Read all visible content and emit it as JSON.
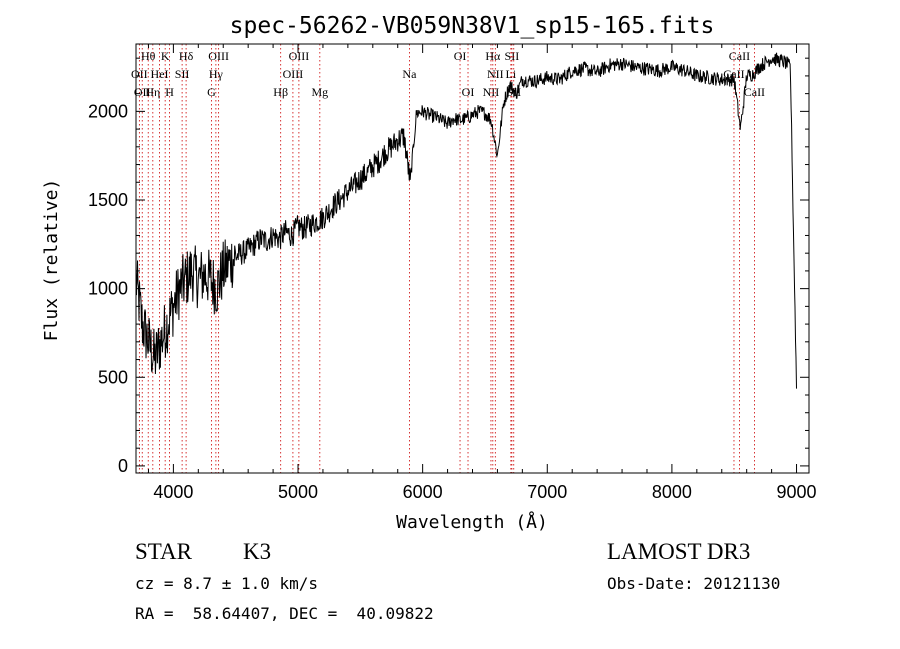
{
  "chart_data": {
    "type": "line",
    "title": "spec-56262-VB059N38V1_sp15-165.fits",
    "xlabel": "Wavelength (Å)",
    "ylabel": "Flux (relative)",
    "xlim": [
      3700,
      9100
    ],
    "ylim": [
      -40,
      2380
    ],
    "xticks": [
      "4000",
      "5000",
      "6000",
      "7000",
      "8000",
      "9000"
    ],
    "yticks": [
      "0",
      "500",
      "1000",
      "1500",
      "2000"
    ],
    "grid": false,
    "series": [
      {
        "name": "flux",
        "x": [
          3700,
          3750,
          3800,
          3850,
          3900,
          3950,
          4000,
          4050,
          4100,
          4150,
          4200,
          4250,
          4300,
          4350,
          4400,
          4450,
          4500,
          4550,
          4600,
          4650,
          4700,
          4750,
          4800,
          4850,
          4900,
          4950,
          5000,
          5050,
          5100,
          5150,
          5200,
          5250,
          5300,
          5350,
          5400,
          5450,
          5500,
          5550,
          5600,
          5650,
          5700,
          5750,
          5800,
          5850,
          5900,
          5950,
          6000,
          6050,
          6100,
          6150,
          6200,
          6250,
          6300,
          6350,
          6400,
          6450,
          6500,
          6550,
          6600,
          6650,
          6700,
          6750,
          6800,
          6900,
          7000,
          7100,
          7200,
          7300,
          7400,
          7500,
          7600,
          7700,
          7800,
          7900,
          8000,
          8100,
          8200,
          8300,
          8400,
          8500,
          8550,
          8600,
          8650,
          8700,
          8800,
          8900,
          8950,
          9000
        ],
        "y": [
          1050,
          800,
          700,
          600,
          700,
          800,
          900,
          1000,
          1050,
          1100,
          1050,
          1080,
          1050,
          1000,
          1100,
          1150,
          1180,
          1200,
          1220,
          1250,
          1280,
          1270,
          1300,
          1280,
          1320,
          1300,
          1350,
          1340,
          1360,
          1380,
          1400,
          1440,
          1480,
          1510,
          1550,
          1580,
          1620,
          1650,
          1690,
          1720,
          1770,
          1800,
          1840,
          1860,
          1600,
          1990,
          2000,
          1980,
          1970,
          1950,
          1930,
          1960,
          1950,
          1960,
          1980,
          2000,
          1990,
          1950,
          1750,
          2050,
          2150,
          2100,
          2180,
          2170,
          2190,
          2180,
          2230,
          2240,
          2220,
          2260,
          2270,
          2250,
          2240,
          2230,
          2250,
          2230,
          2200,
          2190,
          2180,
          2180,
          1900,
          2200,
          2210,
          2250,
          2300,
          2280,
          2250,
          450
        ]
      }
    ],
    "lines": [
      {
        "wavelength": 3727,
        "labels": [
          "OII"
        ],
        "row": 1
      },
      {
        "wavelength": 3750,
        "labels": [
          "OII"
        ],
        "row": 2
      },
      {
        "wavelength": 3798,
        "labels": [
          "Hθ"
        ],
        "row": 0
      },
      {
        "wavelength": 3835,
        "labels": [
          "Hη"
        ],
        "row": 2
      },
      {
        "wavelength": 3889,
        "labels": [
          "HeI"
        ],
        "row": 1
      },
      {
        "wavelength": 3934,
        "labels": [
          "K"
        ],
        "row": 0
      },
      {
        "wavelength": 3969,
        "labels": [
          "H"
        ],
        "row": 2
      },
      {
        "wavelength": 4070,
        "labels": [
          "SII"
        ],
        "row": 1
      },
      {
        "wavelength": 4102,
        "labels": [
          "Hδ"
        ],
        "row": 0
      },
      {
        "wavelength": 4305,
        "labels": [
          "G"
        ],
        "row": 2
      },
      {
        "wavelength": 4341,
        "labels": [
          "Hγ"
        ],
        "row": 1
      },
      {
        "wavelength": 4363,
        "labels": [
          "OIII"
        ],
        "row": 0
      },
      {
        "wavelength": 4861,
        "labels": [
          "Hβ"
        ],
        "row": 2
      },
      {
        "wavelength": 4959,
        "labels": [
          "OIII"
        ],
        "row": 1
      },
      {
        "wavelength": 5007,
        "labels": [
          "OIII"
        ],
        "row": 0
      },
      {
        "wavelength": 5175,
        "labels": [
          "Mg"
        ],
        "row": 2
      },
      {
        "wavelength": 5894,
        "labels": [
          "Na"
        ],
        "row": 1
      },
      {
        "wavelength": 6300,
        "labels": [
          "OI"
        ],
        "row": 0
      },
      {
        "wavelength": 6364,
        "labels": [
          "OI"
        ],
        "row": 2
      },
      {
        "wavelength": 6548,
        "labels": [
          "NII"
        ],
        "row": 2
      },
      {
        "wavelength": 6563,
        "labels": [
          "Hα"
        ],
        "row": 0
      },
      {
        "wavelength": 6583,
        "labels": [
          "NII"
        ],
        "row": 1
      },
      {
        "wavelength": 6708,
        "labels": [
          "Li"
        ],
        "row": 1
      },
      {
        "wavelength": 6716,
        "labels": [
          "SII"
        ],
        "row": 0
      },
      {
        "wavelength": 6731,
        "labels": [
          "SII"
        ],
        "row": 2
      },
      {
        "wavelength": 8498,
        "labels": [
          "CaII"
        ],
        "row": 1
      },
      {
        "wavelength": 8542,
        "labels": [
          "CaII"
        ],
        "row": 0
      },
      {
        "wavelength": 8662,
        "labels": [
          "CaII"
        ],
        "row": 2
      }
    ]
  },
  "info": {
    "object_class": "STAR",
    "subclass": "K3",
    "survey": "LAMOST DR3",
    "cz": "cz = 8.7 ± 1.0 km/s",
    "obs_date": "Obs-Date: 20121130",
    "radec": "RA =  58.64407, DEC =  40.09822"
  }
}
